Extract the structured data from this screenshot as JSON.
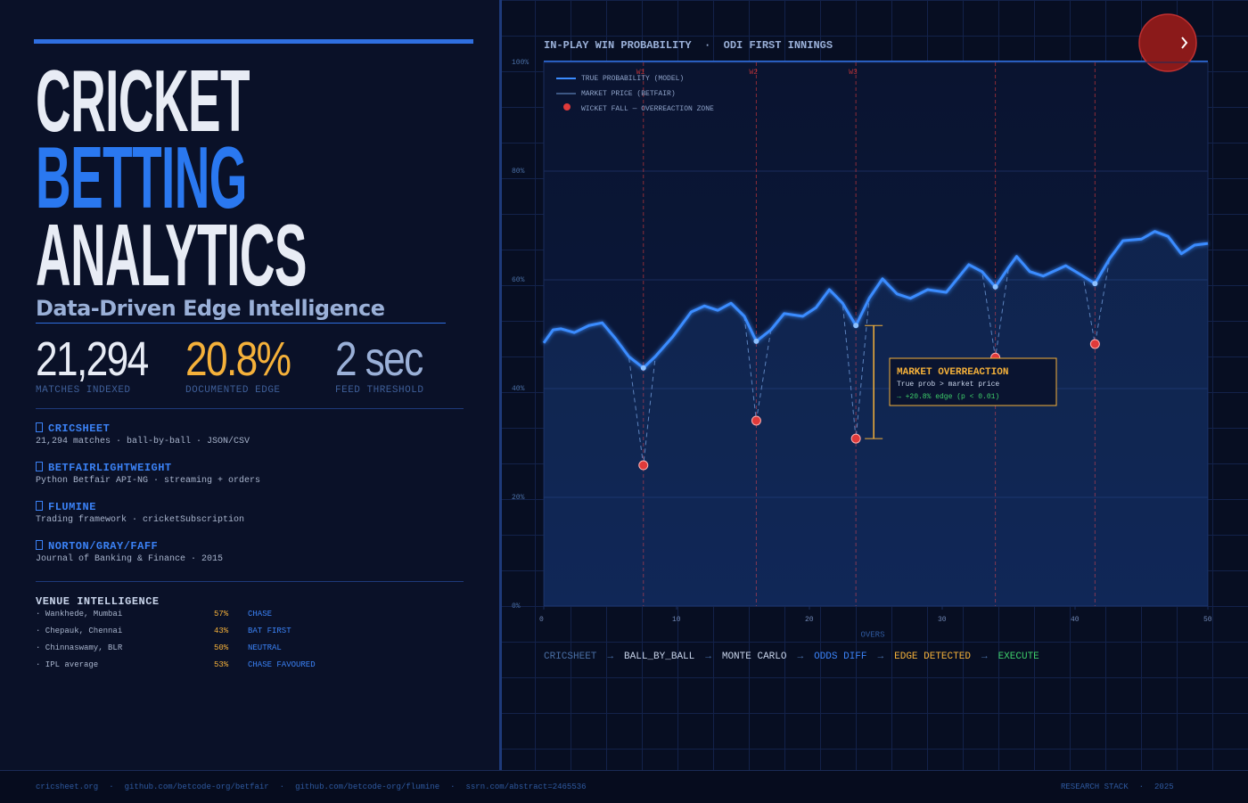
{
  "header": {
    "title_lines": [
      "CRICKET",
      "BETTING",
      "ANALYTICS"
    ],
    "subtitle": "Data-Driven Edge Intelligence"
  },
  "stats": [
    {
      "value": "21,294",
      "label": "MATCHES INDEXED"
    },
    {
      "value": "20.8%",
      "label": "DOCUMENTED EDGE"
    },
    {
      "value": "2 sec",
      "label": "FEED THRESHOLD"
    }
  ],
  "sources": [
    {
      "name": "CRICSHEET",
      "detail": "21,294 matches · ball-by-ball · JSON/CSV"
    },
    {
      "name": "BETFAIRLIGHTWEIGHT",
      "detail": "Python Betfair API-NG · streaming + orders"
    },
    {
      "name": "FLUMINE",
      "detail": "Trading framework · cricketSubscription"
    },
    {
      "name": "NORTON/GRAY/FAFF",
      "detail": "Journal of Banking & Finance · 2015"
    }
  ],
  "venues": {
    "title": "VENUE INTELLIGENCE",
    "rows": [
      {
        "venue": "· Wankhede, Mumbai",
        "pct": "57%",
        "call": "CHASE"
      },
      {
        "venue": "· Chepauk, Chennai",
        "pct": "43%",
        "call": "BAT FIRST"
      },
      {
        "venue": "· Chinnaswamy, BLR",
        "pct": "50%",
        "call": "NEUTRAL"
      },
      {
        "venue": "· IPL average",
        "pct": "53%",
        "call": "CHASE FAVOURED"
      }
    ]
  },
  "chart_data": {
    "type": "line",
    "title": "IN-PLAY WIN PROBABILITY  ·  ODI FIRST INNINGS",
    "xlabel": "OVERS",
    "x": [
      0,
      0.7,
      1.3,
      2.3,
      3.4,
      4.4,
      5.4,
      6.4,
      7.5,
      8.4,
      9.7,
      11.1,
      12.1,
      13.1,
      14.1,
      15.1,
      16,
      17.1,
      18.1,
      19.5,
      20.5,
      21.5,
      22.5,
      23.5,
      24.5,
      25.5,
      26.6,
      27.6,
      28.9,
      30.3,
      32,
      33,
      34,
      35,
      35.6,
      36.6,
      37.6,
      39.3,
      40.6,
      41.5,
      42.6,
      43.6,
      45,
      46,
      47,
      48,
      49,
      50
    ],
    "series": [
      {
        "name": "TRUE PROBABILITY (MODEL)",
        "color": "#3b8cff",
        "values": [
          48.4,
          50.8,
          51,
          50.3,
          51.6,
          52.1,
          49.2,
          45.9,
          43.8,
          45.9,
          49.5,
          54.1,
          55.2,
          54.4,
          55.7,
          53.3,
          48.7,
          50.8,
          53.8,
          53.3,
          54.9,
          58.2,
          55.7,
          51.6,
          56.6,
          60.2,
          57.4,
          56.6,
          58.2,
          57.7,
          62.8,
          61.5,
          58.7,
          62.3,
          64.3,
          61.5,
          60.7,
          62.6,
          60.7,
          59.3,
          63.9,
          67.2,
          67.5,
          68.9,
          68,
          64.8,
          66.4,
          66.7
        ]
      },
      {
        "name": "MARKET PRICE (BETFAIR)",
        "color": "#6f9ad8",
        "values": [
          48.4,
          50.8,
          51,
          50.3,
          51.6,
          52.1,
          49.2,
          45.9,
          25.9,
          45.9,
          49.5,
          54.1,
          55.2,
          54.4,
          55.7,
          53.3,
          34.1,
          50.8,
          53.8,
          53.3,
          54.9,
          58.2,
          55.7,
          30.8,
          56.6,
          60.2,
          57.4,
          56.6,
          58.2,
          57.7,
          62.8,
          61.5,
          45.7,
          62.3,
          64.3,
          61.5,
          60.7,
          62.6,
          60.7,
          48.2,
          63.9,
          67.2,
          67.5,
          68.9,
          68,
          64.8,
          66.4,
          66.7
        ]
      }
    ],
    "wickets": {
      "name": "WICKET FALL — OVERREACTION ZONE",
      "color": "#e03a3a",
      "overs": [
        7.5,
        16,
        23.5,
        34,
        41.5
      ],
      "labels": [
        "W1",
        "W2",
        "W3",
        null,
        null
      ]
    },
    "annotation": {
      "title": "MARKET OVERREACTION",
      "lines": [
        "True prob > market price",
        "→ +20.8% edge (p < 0.01)"
      ],
      "color": "#f5b13a"
    },
    "xlim": [
      0,
      50
    ],
    "xticks": [
      0,
      10,
      20,
      30,
      40,
      50
    ],
    "ylim": [
      0,
      100
    ],
    "yticks": [
      {
        "value": 0,
        "label": "0%"
      },
      {
        "value": 20,
        "label": "20%"
      },
      {
        "value": 40,
        "label": "40%"
      },
      {
        "value": 60,
        "label": "60%"
      },
      {
        "value": 80,
        "label": "80%"
      },
      {
        "value": 100,
        "label": "100%"
      }
    ],
    "grid": true,
    "legend": "top-left"
  },
  "pipeline": {
    "steps": [
      "CRICSHEET",
      "BALL_BY_BALL",
      "MONTE CARLO",
      "ODDS DIFF",
      "EDGE DETECTED",
      "EXECUTE"
    ],
    "separator": "→"
  },
  "footer": {
    "links": [
      "cricsheet.org",
      "github.com/betcode-org/betfair",
      "github.com/betcode-org/flumine",
      "ssrn.com/abstract=2465536"
    ],
    "separator": "·",
    "right": [
      "RESEARCH STACK",
      "2025"
    ]
  }
}
